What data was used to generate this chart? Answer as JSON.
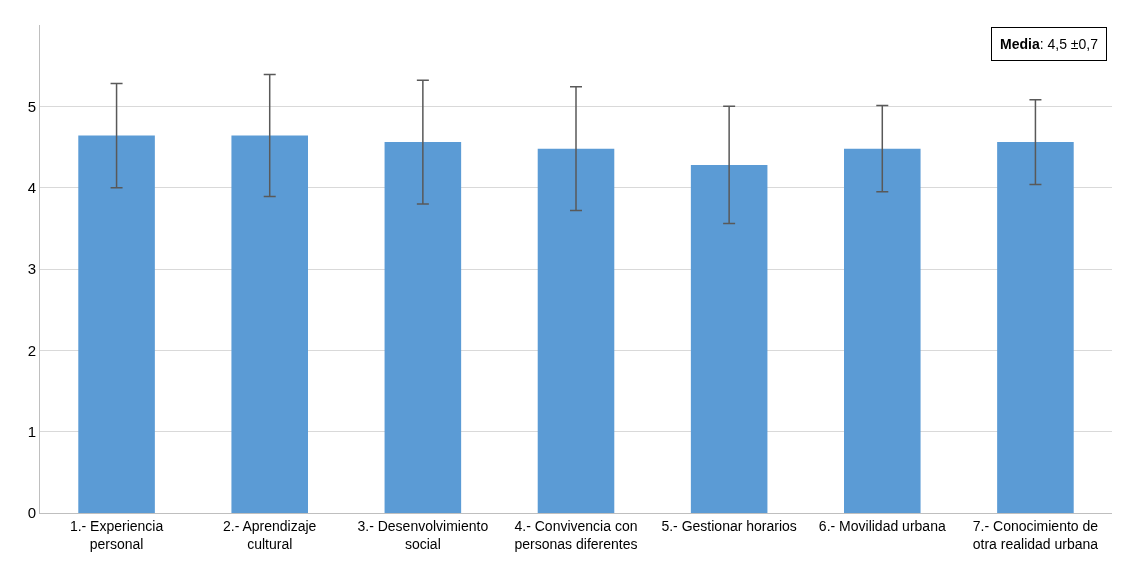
{
  "chart_data": {
    "type": "bar",
    "categories": [
      "1.- Experiencia personal",
      "2.- Aprendizaje cultural",
      "3.- Desenvolvimiento social",
      "4.- Convivencia con personas diferentes",
      "5.- Gestionar horarios",
      "6.- Movilidad urbana",
      "7.- Conocimiento de otra realidad urbana"
    ],
    "values": [
      4.64,
      4.64,
      4.56,
      4.48,
      4.28,
      4.48,
      4.56
    ],
    "errors": [
      0.64,
      0.75,
      0.76,
      0.76,
      0.72,
      0.53,
      0.52
    ],
    "color": "#5b9bd5",
    "ylim": [
      0,
      6
    ],
    "yticks": [
      0,
      1,
      2,
      3,
      4,
      5
    ],
    "grid": "y",
    "annotations": [
      "Media: 4,5 ±0,7"
    ]
  }
}
